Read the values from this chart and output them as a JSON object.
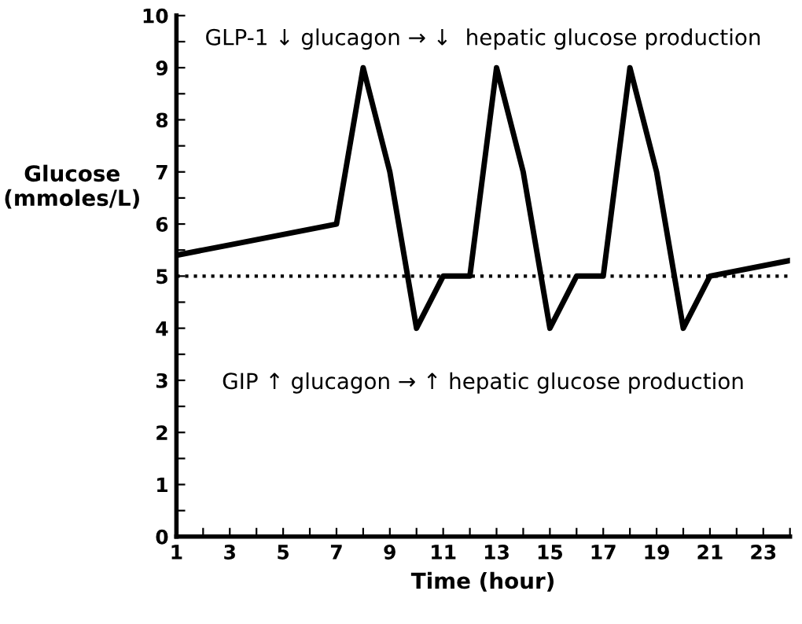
{
  "chart_data": {
    "type": "line",
    "xlabel": "Time (hour)",
    "ylabel": "Glucose\n(mmoles/L)",
    "x": [
      1,
      3,
      7,
      8,
      9,
      10,
      11,
      12,
      13,
      14,
      15,
      16,
      17,
      18,
      19,
      20,
      21,
      24
    ],
    "series": [
      {
        "color": "#000000",
        "values": [
          5.4,
          5.6,
          6.0,
          9,
          7,
          4,
          5,
          5,
          9,
          7,
          4,
          5,
          5,
          9,
          7,
          4,
          5,
          5.3
        ]
      }
    ],
    "xlim": [
      1,
      24
    ],
    "xticks": [
      1,
      {
        "value": 2,
        "label": null
      },
      3,
      {
        "value": 4,
        "label": null
      },
      5,
      {
        "value": 6,
        "label": null
      },
      7,
      {
        "value": 8,
        "label": null
      },
      9,
      {
        "value": 10,
        "label": null
      },
      11,
      {
        "value": 12,
        "label": null
      },
      13,
      {
        "value": 14,
        "label": null
      },
      15,
      {
        "value": 16,
        "label": null
      },
      17,
      {
        "value": 18,
        "label": null
      },
      19,
      {
        "value": 20,
        "label": null
      },
      21,
      {
        "value": 22,
        "label": null
      },
      23,
      {
        "value": 24,
        "label": null
      }
    ],
    "ylim": [
      0,
      10
    ],
    "yticks": [
      0,
      {
        "value": 0.5,
        "label": null
      },
      1,
      {
        "value": 1.5,
        "label": null
      },
      2,
      {
        "value": 2.5,
        "label": null
      },
      3,
      {
        "value": 3.5,
        "label": null
      },
      4,
      {
        "value": 4.5,
        "label": null
      },
      5,
      {
        "value": 5.5,
        "label": null
      },
      6,
      {
        "value": 6.5,
        "label": null
      },
      7,
      {
        "value": 7.5,
        "label": null
      },
      8,
      {
        "value": 8.5,
        "label": null
      },
      9,
      {
        "value": 9.5,
        "label": null
      },
      10
    ],
    "ref_lines": [
      {
        "axis": "y",
        "value": 5,
        "color": "#000000",
        "line_style": "dotted"
      }
    ],
    "annotations": [
      "GLP-1 ↓ glucagon → ↓  hepatic glucose production",
      "GIP ↑ glucagon → ↑ hepatic glucose production"
    ],
    "grid": false,
    "marker": "none",
    "line_style": "solid"
  }
}
